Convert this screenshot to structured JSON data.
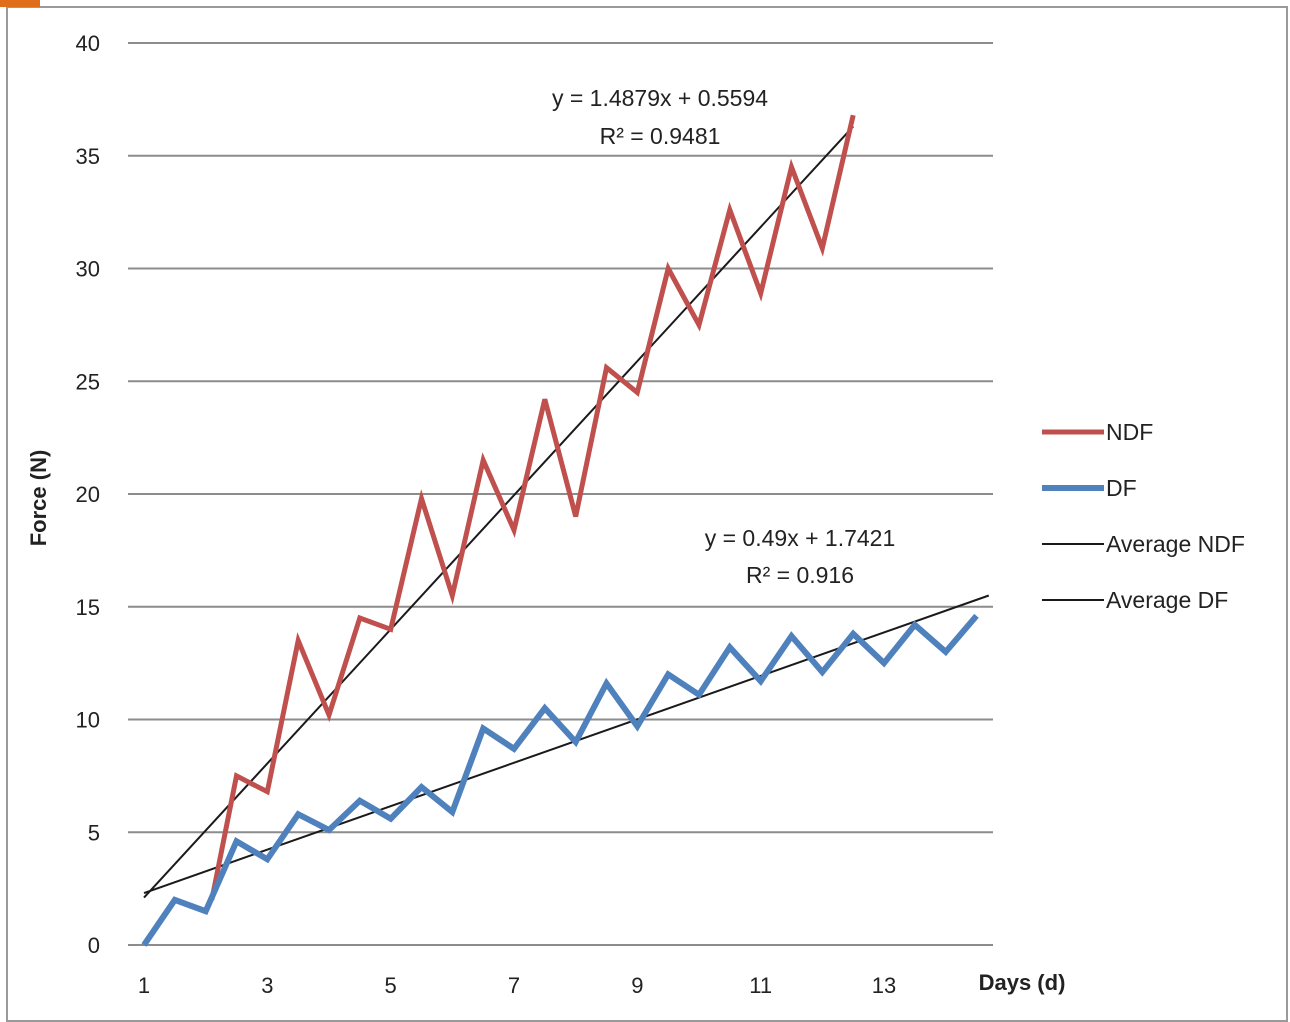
{
  "chart_data": {
    "type": "line",
    "xlabel": "Days (d)",
    "ylabel": "Force (N)",
    "xlim": [
      1,
      15
    ],
    "ylim": [
      0,
      40
    ],
    "x_ticks": [
      1,
      3,
      5,
      7,
      9,
      11,
      13
    ],
    "y_ticks": [
      0,
      5,
      10,
      15,
      20,
      25,
      30,
      35,
      40
    ],
    "grid": "horizontal",
    "legend": "right",
    "series": [
      {
        "name": "NDF",
        "color": "#c0504d",
        "x": [
          2.1,
          2.5,
          3.0,
          3.5,
          4.0,
          4.5,
          5.0,
          5.5,
          6.0,
          6.5,
          7.0,
          7.5,
          8.0,
          8.5,
          9.0,
          9.5,
          10.0,
          10.5,
          11.0,
          11.5,
          12.0,
          12.5
        ],
        "y": [
          2.0,
          7.5,
          6.8,
          13.5,
          10.2,
          14.5,
          14.0,
          19.8,
          15.5,
          21.5,
          18.4,
          24.2,
          19.0,
          25.6,
          24.5,
          30.0,
          27.5,
          32.6,
          28.9,
          34.5,
          30.9,
          36.8
        ]
      },
      {
        "name": "DF",
        "color": "#4f81bd",
        "x": [
          1.0,
          1.5,
          2.0,
          2.5,
          3.0,
          3.5,
          4.0,
          4.5,
          5.0,
          5.5,
          6.0,
          6.5,
          7.0,
          7.5,
          8.0,
          8.5,
          9.0,
          9.5,
          10.0,
          10.5,
          11.0,
          11.5,
          12.0,
          12.5,
          13.0,
          13.5,
          14.0,
          14.5
        ],
        "y": [
          0.0,
          2.0,
          1.5,
          4.6,
          3.8,
          5.8,
          5.1,
          6.4,
          5.6,
          7.0,
          5.9,
          9.6,
          8.7,
          10.5,
          9.0,
          11.6,
          9.7,
          12.0,
          11.1,
          13.2,
          11.7,
          13.7,
          12.1,
          13.8,
          12.5,
          14.2,
          13.0,
          14.6
        ]
      },
      {
        "name": "Average NDF",
        "color": "#1a1a1a",
        "x": [
          1.0,
          12.5
        ],
        "y": [
          2.1,
          36.3
        ]
      },
      {
        "name": "Average DF",
        "color": "#1a1a1a",
        "x": [
          1.0,
          14.7
        ],
        "y": [
          2.3,
          15.5
        ]
      }
    ],
    "annotations": [
      {
        "lines": [
          "y = 1.4879x + 0.5594",
          "R² = 0.9481"
        ]
      },
      {
        "lines": [
          "y = 0.49x + 1.7421",
          "R² = 0.916"
        ]
      }
    ]
  }
}
